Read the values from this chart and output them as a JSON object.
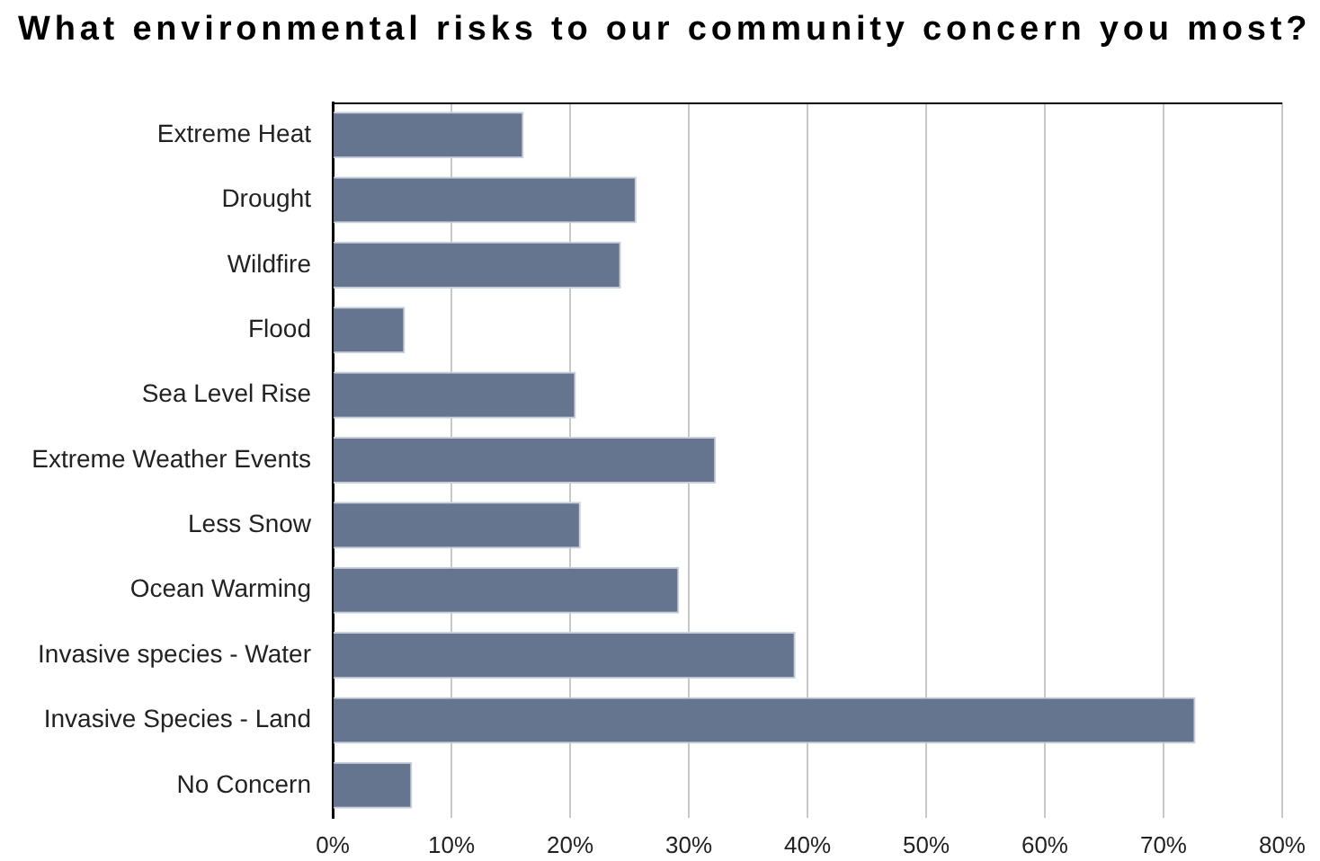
{
  "chart_data": {
    "type": "bar",
    "orientation": "horizontal",
    "title": "What environmental risks to our community concern you most?",
    "categories": [
      "Extreme Heat",
      "Drought",
      "Wildfire",
      "Flood",
      "Sea Level Rise",
      "Extreme Weather Events",
      "Less Snow",
      "Ocean Warming",
      "Invasive species - Water",
      "Invasive Species - Land",
      "No Concern"
    ],
    "values": [
      16.1,
      25.6,
      24.3,
      6.1,
      20.5,
      32.3,
      20.9,
      29.2,
      39.0,
      72.7,
      6.7
    ],
    "color": "#66758f",
    "xlim": [
      0,
      80
    ],
    "xticks": [
      {
        "value": 0,
        "label": "0%"
      },
      {
        "value": 10,
        "label": "10%"
      },
      {
        "value": 20,
        "label": "20%"
      },
      {
        "value": 30,
        "label": "30%"
      },
      {
        "value": 40,
        "label": "40%"
      },
      {
        "value": 50,
        "label": "50%"
      },
      {
        "value": 60,
        "label": "60%"
      },
      {
        "value": 70,
        "label": "70%"
      },
      {
        "value": 80,
        "label": "80%"
      }
    ],
    "grid": "x"
  }
}
